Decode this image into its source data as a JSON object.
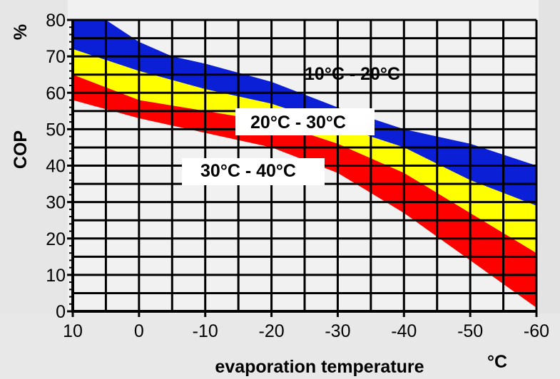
{
  "chart_data": {
    "type": "area",
    "title": "",
    "xlabel": "evaporation temperature",
    "xunit": "°C",
    "ylabel": "COP",
    "yunit": "%",
    "xlim": [
      10,
      -60
    ],
    "ylim": [
      0,
      80
    ],
    "x_ticks": [
      10,
      0,
      -10,
      -20,
      -30,
      -40,
      -50,
      -60
    ],
    "y_ticks": [
      0,
      10,
      20,
      30,
      40,
      50,
      60,
      70,
      80
    ],
    "grid": true,
    "colors": {
      "blue": "#0a1fd6",
      "yellow": "#ffff00",
      "red": "#ff0000"
    },
    "series": [
      {
        "name": "10°C - 20°C",
        "color": "#0a1fd6",
        "upper": [
          [
            10,
            80
          ],
          [
            5,
            80
          ],
          [
            0,
            74
          ],
          [
            -5,
            70
          ],
          [
            -10,
            68
          ],
          [
            -20,
            63
          ],
          [
            -30,
            56
          ],
          [
            -40,
            50
          ],
          [
            -50,
            46
          ],
          [
            -60,
            40
          ]
        ],
        "lower": [
          [
            10,
            72
          ],
          [
            0,
            66
          ],
          [
            -10,
            61
          ],
          [
            -20,
            57
          ],
          [
            -30,
            51
          ],
          [
            -40,
            45
          ],
          [
            -50,
            36
          ],
          [
            -60,
            29
          ]
        ]
      },
      {
        "name": "20°C - 30°C",
        "color": "#ffff00",
        "upper": [
          [
            10,
            72
          ],
          [
            0,
            66
          ],
          [
            -10,
            61
          ],
          [
            -20,
            57
          ],
          [
            -30,
            51
          ],
          [
            -40,
            45
          ],
          [
            -50,
            36
          ],
          [
            -60,
            29
          ]
        ],
        "lower": [
          [
            10,
            65
          ],
          [
            0,
            58
          ],
          [
            -10,
            55
          ],
          [
            -20,
            52
          ],
          [
            -30,
            46
          ],
          [
            -40,
            38
          ],
          [
            -50,
            27
          ],
          [
            -60,
            16
          ]
        ]
      },
      {
        "name": "30°C - 40°C",
        "color": "#ff0000",
        "upper": [
          [
            10,
            65
          ],
          [
            0,
            58
          ],
          [
            -10,
            55
          ],
          [
            -20,
            52
          ],
          [
            -30,
            46
          ],
          [
            -40,
            38
          ],
          [
            -50,
            27
          ],
          [
            -60,
            16
          ]
        ],
        "lower": [
          [
            10,
            58
          ],
          [
            0,
            53
          ],
          [
            -10,
            49
          ],
          [
            -20,
            45
          ],
          [
            -30,
            38
          ],
          [
            -40,
            27
          ],
          [
            -50,
            14
          ],
          [
            -60,
            1
          ]
        ]
      }
    ]
  }
}
